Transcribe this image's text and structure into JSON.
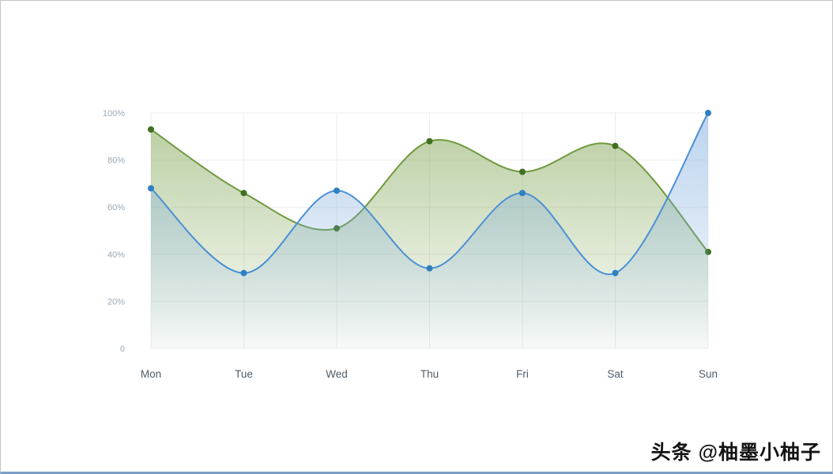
{
  "watermark": {
    "text": "头条 @柚墨小柚子"
  },
  "chart_data": {
    "type": "area",
    "title": "",
    "xlabel": "",
    "ylabel": "",
    "categories": [
      "Mon",
      "Tue",
      "Wed",
      "Thu",
      "Fri",
      "Sat",
      "Sun"
    ],
    "series": [
      {
        "name": "green-series",
        "color": "#6f9a3f",
        "point_color": "#3f7021",
        "fill_top": "rgba(125,163,80,0.55)",
        "fill_bottom": "rgba(125,163,80,0.03)",
        "values": [
          93,
          66,
          51,
          88,
          75,
          86,
          41
        ]
      },
      {
        "name": "blue-series",
        "color": "#4a90d5",
        "point_color": "#2f7fc1",
        "fill_top": "rgba(120,168,220,0.50)",
        "fill_bottom": "rgba(120,168,220,0.03)",
        "values": [
          68,
          32,
          67,
          34,
          66,
          32,
          100
        ]
      }
    ],
    "yticks": [
      {
        "value": 0,
        "label": "0"
      },
      {
        "value": 20,
        "label": "20%"
      },
      {
        "value": 40,
        "label": "40%"
      },
      {
        "value": 60,
        "label": "60%"
      },
      {
        "value": 80,
        "label": "80%"
      },
      {
        "value": 100,
        "label": "100%"
      }
    ],
    "ylim": [
      0,
      100
    ],
    "grid": true,
    "legend_position": "none",
    "axis_label_color": "#9aa8b4",
    "category_label_color": "#4f5d68",
    "grid_color": "#ededed"
  }
}
